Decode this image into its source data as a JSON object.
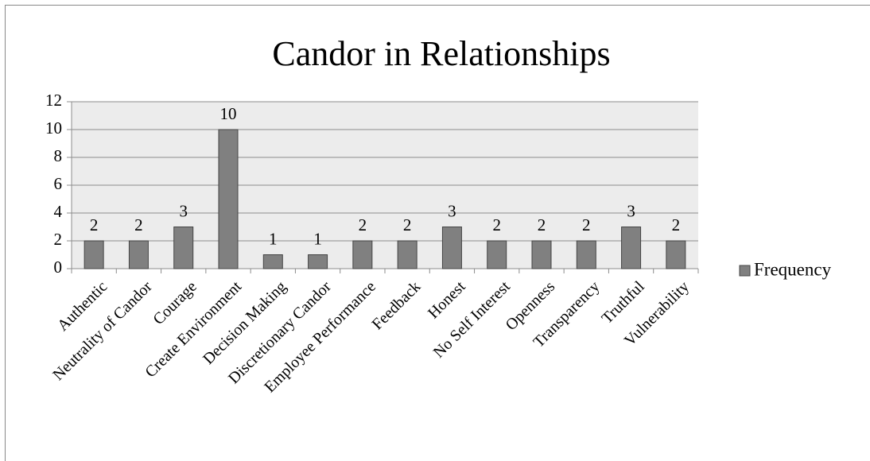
{
  "chart_data": {
    "type": "bar",
    "title": "Candor in Relationships",
    "categories": [
      "Authentic",
      "Neutrality of Candor",
      "Courage",
      "Create Environment",
      "Decision Making",
      "Discretionary Candor",
      "Employee Performance",
      "Feedback",
      "Honest",
      "No Self Interest",
      "Openness",
      "Transparency",
      "Truthful",
      "Vulnerability"
    ],
    "series": [
      {
        "name": "Frequency",
        "color": "#808080",
        "values": [
          2,
          2,
          3,
          10,
          1,
          1,
          2,
          2,
          3,
          2,
          2,
          2,
          3,
          2
        ]
      }
    ],
    "ylim": [
      0,
      12
    ],
    "yticks": [
      0,
      2,
      4,
      6,
      8,
      10,
      12
    ],
    "grid": true,
    "legend": "right",
    "data_labels": true
  }
}
